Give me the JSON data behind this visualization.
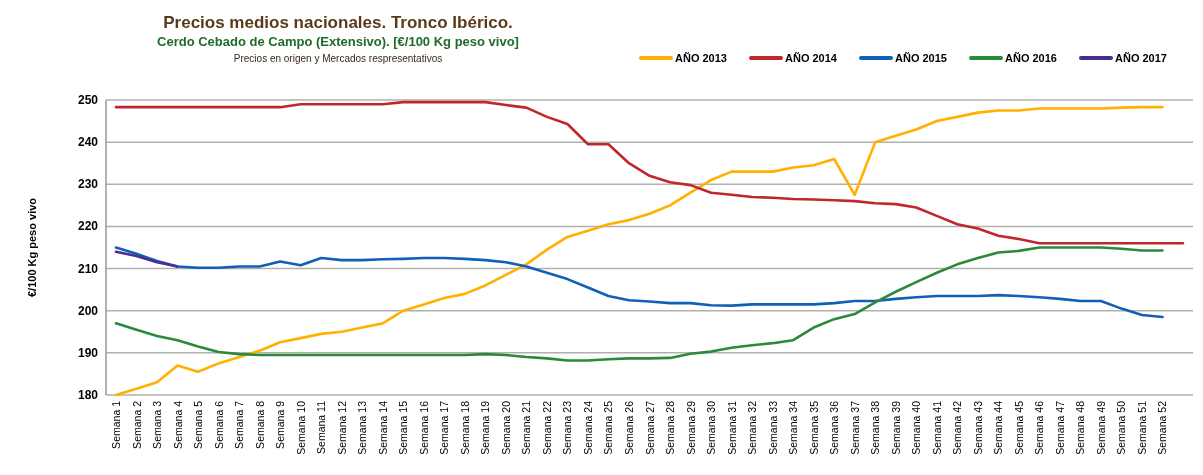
{
  "chart_data": {
    "type": "line",
    "title": "Precios medios nacionales. Tronco Ibérico.",
    "subtitle": "Cerdo Cebado de Campo (Extensivo).  [€/100 Kg peso vivo]",
    "annotations": [
      "Precios en origen y Mercados respresentativos"
    ],
    "ylabel": "€/100 Kg peso vivo",
    "categories": [
      "Semana 1",
      "Semana 2",
      "Semana 3",
      "Semana 4",
      "Semana 5",
      "Semana 6",
      "Semana 7",
      "Semana 8",
      "Semana 9",
      "Semana 10",
      "Semana 11",
      "Semana 12",
      "Semana 13",
      "Semana 14",
      "Semana 15",
      "Semana 16",
      "Semana 17",
      "Semana 18",
      "Semana 19",
      "Semana 20",
      "Semana 21",
      "Semana 22",
      "Semana 23",
      "Semana 24",
      "Semana 25",
      "Semana 26",
      "Semana 27",
      "Semana 28",
      "Semana 29",
      "Semana 30",
      "Semana 31",
      "Semana 32",
      "Semana 33",
      "Semana 34",
      "Semana 35",
      "Semana 36",
      "Semana 37",
      "Semana 38",
      "Semana 39",
      "Semana 40",
      "Semana 41",
      "Semana 42",
      "Semana 43",
      "Semana 44",
      "Semana 45",
      "Semana 46",
      "Semana 47",
      "Semana 48",
      "Semana 49",
      "Semana 50",
      "Semana 51",
      "Semana 52",
      null
    ],
    "ylim": [
      180,
      250
    ],
    "yticks": [
      180,
      190,
      200,
      210,
      220,
      230,
      240,
      250
    ],
    "grid": "y",
    "legend": "top right",
    "marker": "none",
    "line_style": "solid",
    "series": [
      {
        "name": "AÑO 2013",
        "color": "#ffb000",
        "values": [
          180,
          181.5,
          183,
          187,
          185.5,
          187.5,
          189,
          190.5,
          192.5,
          193.5,
          194.5,
          195,
          196,
          197,
          200,
          201.5,
          203,
          204,
          206,
          208.5,
          211,
          214.5,
          217.5,
          219,
          220.5,
          221.5,
          223,
          225,
          228,
          231,
          233,
          233,
          233,
          234,
          234.5,
          236,
          227.5,
          240,
          241.5,
          243,
          245,
          246,
          247,
          247.5,
          247.5,
          248,
          248,
          248,
          248,
          248.2,
          248.3,
          248.3,
          null
        ]
      },
      {
        "name": "AÑO 2014",
        "color": "#c0272d",
        "values": [
          248.3,
          248.3,
          248.3,
          248.3,
          248.3,
          248.3,
          248.3,
          248.3,
          248.3,
          249,
          249,
          249,
          249,
          249,
          249.5,
          249.5,
          249.5,
          249.5,
          249.5,
          248.8,
          248.2,
          246,
          244.3,
          239.5,
          239.5,
          235,
          232,
          230.5,
          229.8,
          228,
          227.5,
          227,
          226.8,
          226.5,
          226.4,
          226.2,
          226,
          225.5,
          225.3,
          224.5,
          222.5,
          220.5,
          219.5,
          217.8,
          217,
          216,
          216,
          216,
          216,
          216,
          216,
          216,
          216
        ]
      },
      {
        "name": "AÑO 2015",
        "color": "#1060b8",
        "values": [
          215,
          213.5,
          211.8,
          210.5,
          210.2,
          210.2,
          210.5,
          210.5,
          211.7,
          210.8,
          212.5,
          212,
          212,
          212.2,
          212.3,
          212.5,
          212.5,
          212.3,
          212,
          211.5,
          210.5,
          209,
          207.5,
          205.5,
          203.5,
          202.5,
          202.2,
          201.8,
          201.8,
          201.3,
          201.2,
          201.5,
          201.5,
          201.5,
          201.5,
          201.8,
          202.3,
          202.3,
          202.8,
          203.2,
          203.5,
          203.5,
          203.5,
          203.7,
          203.5,
          203.2,
          202.8,
          202.3,
          202.3,
          200.5,
          199,
          198.5,
          null
        ]
      },
      {
        "name": "AÑO 2016",
        "color": "#2a8a3a",
        "values": [
          197,
          195.5,
          194,
          193,
          191.5,
          190.2,
          189.7,
          189.5,
          189.5,
          189.5,
          189.5,
          189.5,
          189.5,
          189.5,
          189.5,
          189.5,
          189.5,
          189.5,
          189.7,
          189.5,
          189,
          188.7,
          188.2,
          188.2,
          188.5,
          188.7,
          188.7,
          188.8,
          189.8,
          190.3,
          191.2,
          191.8,
          192.3,
          193,
          196,
          198,
          199.2,
          202,
          204.5,
          206.8,
          209,
          211,
          212.5,
          213.8,
          214.2,
          215,
          215,
          215,
          215,
          214.7,
          214.3,
          214.3,
          null
        ]
      },
      {
        "name": "AÑO 2017",
        "color": "#4b2d8f",
        "values": [
          214,
          213,
          211.5,
          210.5,
          null,
          null,
          null,
          null,
          null,
          null,
          null,
          null,
          null,
          null,
          null,
          null,
          null,
          null,
          null,
          null,
          null,
          null,
          null,
          null,
          null,
          null,
          null,
          null,
          null,
          null,
          null,
          null,
          null,
          null,
          null,
          null,
          null,
          null,
          null,
          null,
          null,
          null,
          null,
          null,
          null,
          null,
          null,
          null,
          null,
          null,
          null,
          null,
          null
        ]
      }
    ]
  }
}
